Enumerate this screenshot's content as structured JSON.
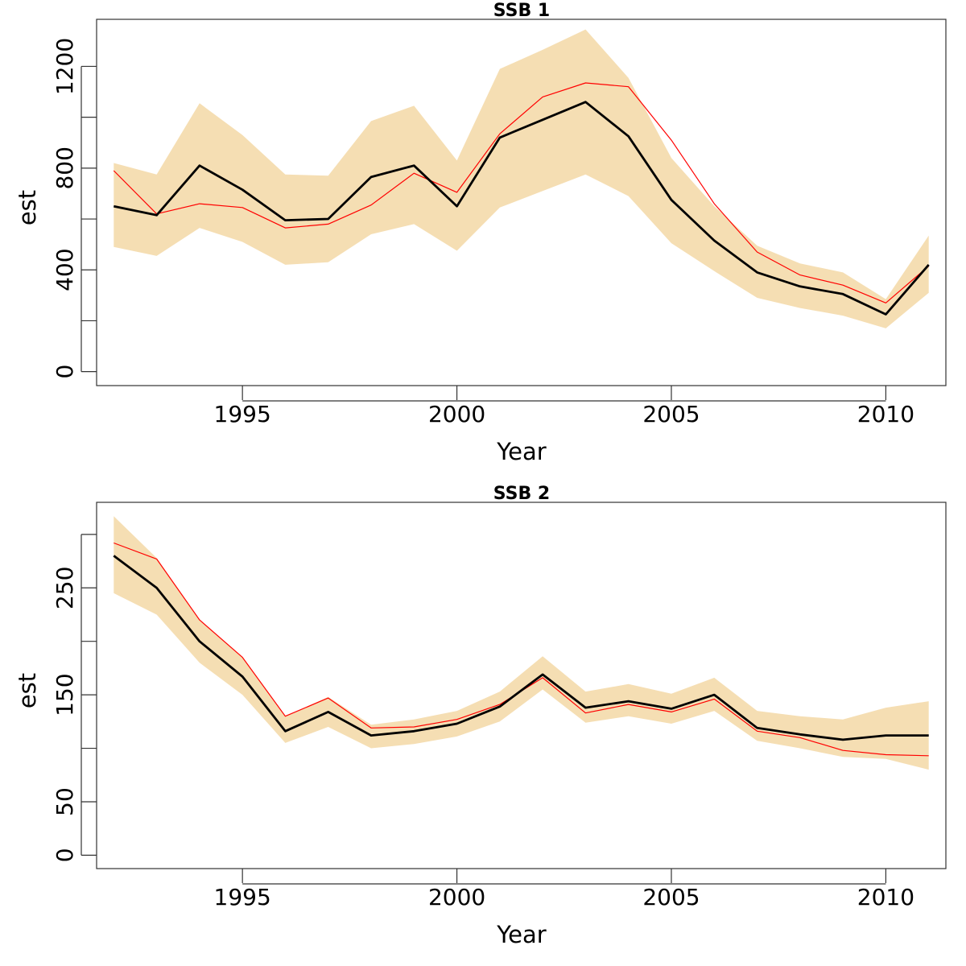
{
  "chart_data": [
    {
      "type": "line",
      "title": "SSB 1",
      "xlabel": "Year",
      "ylabel": "est",
      "xlim": [
        1991.6,
        2011.4
      ],
      "ylim": [
        -55,
        1385
      ],
      "xticks": [
        1995,
        2000,
        2005,
        2010
      ],
      "yticks": [
        0,
        200,
        400,
        600,
        800,
        1000,
        1200
      ],
      "ytick_labels": [
        "0",
        "",
        "400",
        "",
        "800",
        "",
        "1200"
      ],
      "grid": false,
      "x": [
        1992,
        1993,
        1994,
        1995,
        1996,
        1997,
        1998,
        1999,
        2000,
        2001,
        2002,
        2003,
        2004,
        2005,
        2006,
        2007,
        2008,
        2009,
        2010,
        2011
      ],
      "band": {
        "lower": [
          490,
          455,
          565,
          510,
          420,
          430,
          540,
          580,
          475,
          645,
          710,
          775,
          690,
          505,
          395,
          290,
          250,
          220,
          170,
          310
        ],
        "upper": [
          820,
          775,
          1055,
          930,
          775,
          770,
          985,
          1045,
          830,
          1190,
          1265,
          1345,
          1155,
          840,
          650,
          495,
          425,
          390,
          285,
          535
        ]
      },
      "series": [
        {
          "values": [
            650,
            615,
            810,
            715,
            595,
            600,
            765,
            810,
            650,
            920,
            990,
            1060,
            925,
            675,
            515,
            390,
            335,
            305,
            225,
            420
          ]
        },
        {
          "values": [
            790,
            620,
            660,
            645,
            565,
            580,
            655,
            780,
            705,
            935,
            1080,
            1135,
            1120,
            910,
            660,
            470,
            380,
            340,
            270,
            415
          ]
        }
      ]
    },
    {
      "type": "line",
      "title": "SSB 2",
      "xlabel": "Year",
      "ylabel": "est",
      "xlim": [
        1991.6,
        2011.4
      ],
      "ylim": [
        -12.5,
        330
      ],
      "xticks": [
        1995,
        2000,
        2005,
        2010
      ],
      "yticks": [
        0,
        50,
        100,
        150,
        200,
        250,
        300
      ],
      "ytick_labels": [
        "0",
        "50",
        "",
        "150",
        "",
        "250",
        ""
      ],
      "grid": false,
      "x": [
        1992,
        1993,
        1994,
        1995,
        1996,
        1997,
        1998,
        1999,
        2000,
        2001,
        2002,
        2003,
        2004,
        2005,
        2006,
        2007,
        2008,
        2009,
        2010,
        2011
      ],
      "band": {
        "lower": [
          245,
          225,
          180,
          150,
          105,
          120,
          100,
          104,
          111,
          125,
          155,
          124,
          130,
          123,
          135,
          107,
          100,
          92,
          90,
          80
        ],
        "upper": [
          317,
          278,
          220,
          185,
          130,
          148,
          122,
          127,
          135,
          153,
          186,
          153,
          160,
          151,
          166,
          135,
          130,
          127,
          138,
          144
        ]
      },
      "series": [
        {
          "values": [
            280,
            250,
            200,
            167,
            116,
            134,
            112,
            116,
            123,
            139,
            169,
            138,
            144,
            137,
            150,
            119,
            113,
            108,
            112,
            112
          ]
        },
        {
          "values": [
            292,
            277,
            220,
            185,
            130,
            147,
            119,
            120,
            127,
            141,
            166,
            133,
            141,
            134,
            146,
            116,
            110,
            98,
            94,
            93
          ]
        }
      ]
    }
  ]
}
